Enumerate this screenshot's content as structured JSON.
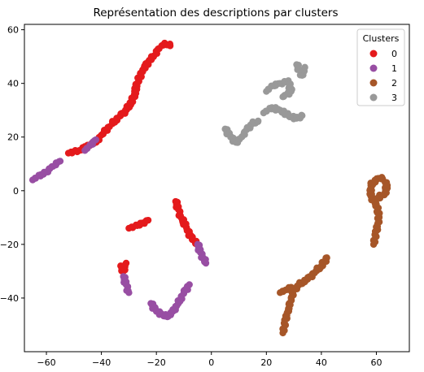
{
  "chart_data": {
    "type": "scatter",
    "title": "Représentation des descriptions par clusters",
    "xlabel": "",
    "ylabel": "",
    "xlim": [
      -68,
      72
    ],
    "ylim": [
      -60,
      62
    ],
    "xticks": [
      -60,
      -40,
      -20,
      0,
      20,
      40,
      60
    ],
    "yticks": [
      -40,
      -20,
      0,
      20,
      40,
      60
    ],
    "grid": false,
    "legend": {
      "title": "Clusters",
      "placement": "top-right",
      "entries": [
        {
          "label": "0",
          "color": "#e41a1c"
        },
        {
          "label": "1",
          "color": "#984ea3"
        },
        {
          "label": "2",
          "color": "#a65628"
        },
        {
          "label": "3",
          "color": "#999999"
        }
      ]
    },
    "series": [
      {
        "name": "0",
        "color": "#e41a1c",
        "segments": [
          [
            [
              -52,
              14
            ],
            [
              -48,
              15
            ],
            [
              -45,
              17
            ],
            [
              -42,
              18
            ],
            [
              -39,
              22
            ],
            [
              -36,
              25
            ],
            [
              -33,
              28
            ],
            [
              -31,
              30
            ],
            [
              -29,
              33
            ],
            [
              -28,
              36
            ],
            [
              -27,
              40
            ],
            [
              -25,
              45
            ],
            [
              -23,
              48
            ],
            [
              -21,
              50
            ],
            [
              -19,
              53
            ],
            [
              -17,
              55
            ],
            [
              -15,
              54
            ]
          ],
          [
            [
              -33,
              -28
            ],
            [
              -32,
              -30
            ],
            [
              -31,
              -27
            ]
          ],
          [
            [
              -30,
              -14
            ],
            [
              -27,
              -13
            ],
            [
              -25,
              -12
            ],
            [
              -23,
              -11
            ]
          ],
          [
            [
              -13,
              -4
            ],
            [
              -12,
              -7
            ],
            [
              -11,
              -10
            ],
            [
              -9,
              -14
            ],
            [
              -7,
              -18
            ],
            [
              -5,
              -20
            ]
          ]
        ]
      },
      {
        "name": "1",
        "color": "#984ea3",
        "segments": [
          [
            [
              -65,
              4
            ],
            [
              -62,
              6
            ],
            [
              -60,
              7
            ],
            [
              -58,
              9
            ],
            [
              -55,
              11
            ]
          ],
          [
            [
              -46,
              15
            ],
            [
              -44,
              17
            ],
            [
              -42,
              19
            ]
          ],
          [
            [
              -32,
              -32
            ],
            [
              -31,
              -35
            ],
            [
              -30,
              -38
            ]
          ],
          [
            [
              -22,
              -42
            ],
            [
              -20,
              -45
            ],
            [
              -18,
              -46
            ],
            [
              -16,
              -47
            ],
            [
              -14,
              -45
            ],
            [
              -12,
              -42
            ],
            [
              -10,
              -38
            ],
            [
              -8,
              -35
            ]
          ],
          [
            [
              -5,
              -20
            ],
            [
              -4,
              -23
            ],
            [
              -3,
              -25
            ],
            [
              -2,
              -27
            ]
          ]
        ]
      },
      {
        "name": "2",
        "color": "#a65628",
        "segments": [
          [
            [
              26,
              -53
            ],
            [
              27,
              -48
            ],
            [
              28,
              -44
            ],
            [
              29,
              -40
            ],
            [
              30,
              -37
            ],
            [
              32,
              -35
            ],
            [
              35,
              -33
            ],
            [
              38,
              -30
            ],
            [
              40,
              -28
            ],
            [
              42,
              -25
            ]
          ],
          [
            [
              25,
              -38
            ],
            [
              27,
              -37
            ],
            [
              29,
              -36
            ]
          ],
          [
            [
              59,
              -20
            ],
            [
              60,
              -15
            ],
            [
              61,
              -10
            ],
            [
              60,
              -5
            ],
            [
              58,
              -2
            ],
            [
              58,
              2
            ],
            [
              60,
              4
            ],
            [
              62,
              5
            ],
            [
              64,
              2
            ],
            [
              63,
              -1
            ],
            [
              60,
              -3
            ]
          ]
        ]
      },
      {
        "name": "3",
        "color": "#999999",
        "segments": [
          [
            [
              5,
              23
            ],
            [
              7,
              20
            ],
            [
              9,
              18
            ],
            [
              11,
              20
            ],
            [
              13,
              23
            ],
            [
              15,
              25
            ],
            [
              17,
              26
            ]
          ],
          [
            [
              19,
              29
            ],
            [
              22,
              31
            ],
            [
              25,
              30
            ],
            [
              28,
              28
            ],
            [
              31,
              27
            ],
            [
              33,
              28
            ]
          ],
          [
            [
              20,
              37
            ],
            [
              22,
              39
            ],
            [
              25,
              40
            ],
            [
              28,
              41
            ],
            [
              29,
              37
            ],
            [
              26,
              35
            ]
          ],
          [
            [
              31,
              47
            ],
            [
              32,
              45
            ],
            [
              33,
              43
            ],
            [
              34,
              46
            ]
          ]
        ]
      }
    ]
  }
}
